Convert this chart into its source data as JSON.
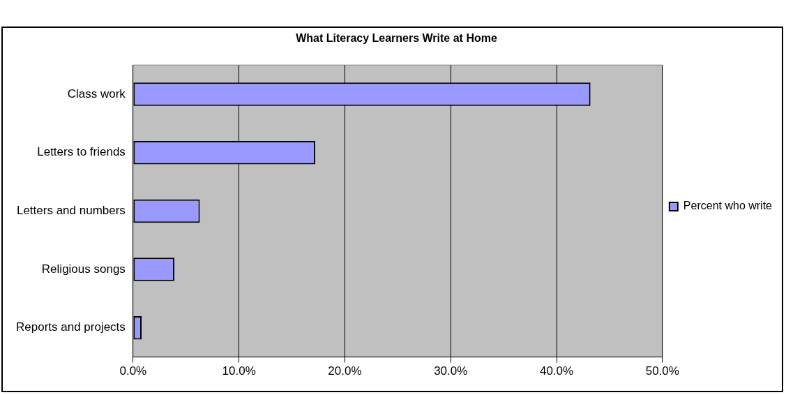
{
  "chart_data": {
    "type": "bar",
    "orientation": "horizontal",
    "title": "What Literacy Learners Write at Home",
    "categories": [
      "Class work",
      "Letters to friends",
      "Letters and numbers",
      "Religious songs",
      "Reports and projects"
    ],
    "series": [
      {
        "name": "Percent who write",
        "color": "#9999ff",
        "values": [
          43.2,
          17.2,
          6.3,
          3.9,
          0.8
        ]
      }
    ],
    "xlim": [
      0,
      50
    ],
    "xticks": [
      {
        "value": 0,
        "label": "0.0%"
      },
      {
        "value": 10,
        "label": "10.0%"
      },
      {
        "value": 20,
        "label": "20.0%"
      },
      {
        "value": 30,
        "label": "30.0%"
      },
      {
        "value": 40,
        "label": "40.0%"
      },
      {
        "value": 50,
        "label": "50.0%"
      }
    ],
    "grid": "x",
    "legend": "right"
  }
}
